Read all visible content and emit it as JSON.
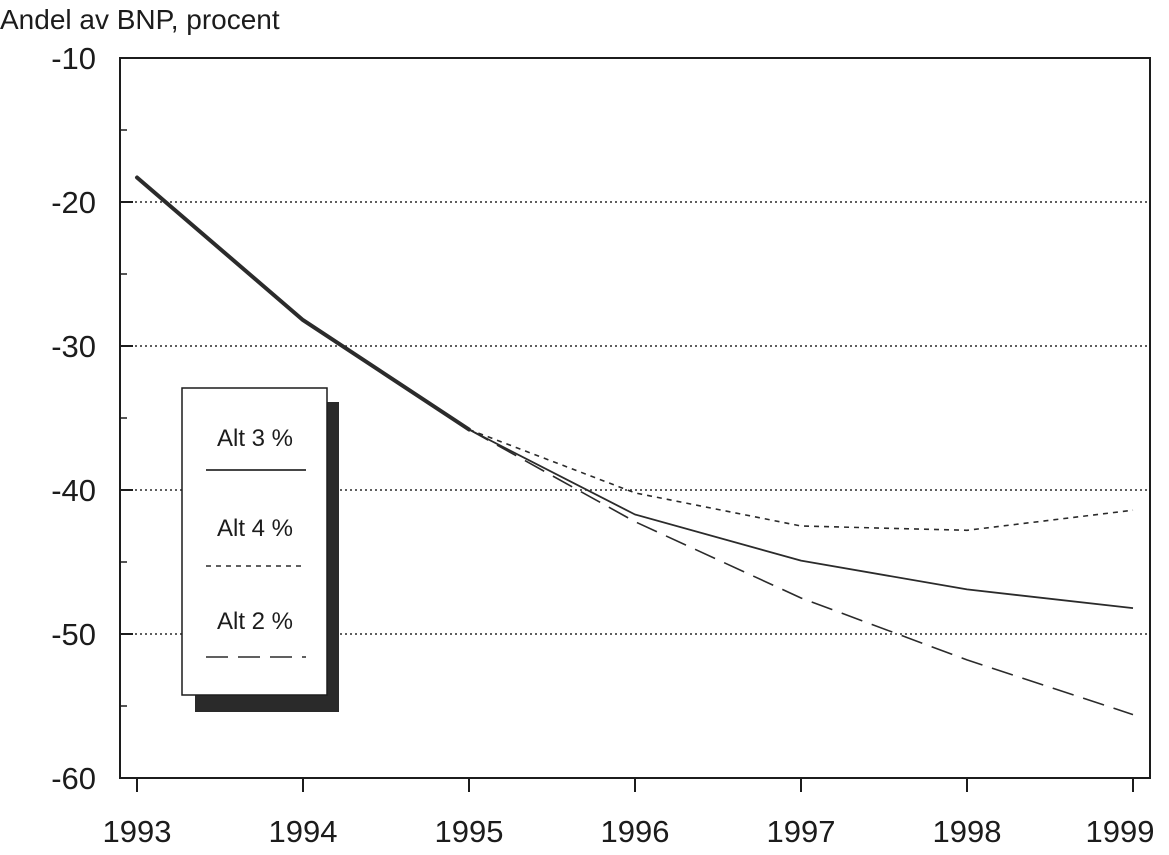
{
  "chart_data": {
    "type": "line",
    "title": "",
    "xlabel": "",
    "ylabel": "Andel av BNP, procent",
    "x": [
      1993,
      1994,
      1995,
      1996,
      1997,
      1998,
      1999
    ],
    "x_tick_labels": [
      "1993",
      "1994",
      "1995",
      "1996",
      "1997",
      "1998",
      "1999"
    ],
    "ylim": [
      -60,
      -10
    ],
    "y_ticks": [
      -10,
      -20,
      -30,
      -40,
      -50,
      -60
    ],
    "y_tick_labels": [
      "-10",
      "-20",
      "-30",
      "-40",
      "-50",
      "-60"
    ],
    "grid": {
      "horizontal_dotted": true,
      "values": [
        -20,
        -30,
        -40,
        -50
      ]
    },
    "legend_position": "left",
    "history": {
      "x": [
        1993,
        1994,
        1995
      ],
      "values": [
        -18.3,
        -28.2,
        -35.8
      ]
    },
    "series": [
      {
        "name": "Alt 3 %",
        "style": "solid",
        "x": [
          1995,
          1996,
          1997,
          1998,
          1999
        ],
        "values": [
          -35.8,
          -41.7,
          -44.9,
          -46.9,
          -48.2
        ]
      },
      {
        "name": "Alt 4 %",
        "style": "dotted",
        "x": [
          1995,
          1996,
          1997,
          1998,
          1999
        ],
        "values": [
          -35.8,
          -40.2,
          -42.5,
          -42.8,
          -41.4
        ]
      },
      {
        "name": "Alt 2 %",
        "style": "dashed",
        "x": [
          1995,
          1996,
          1997,
          1998,
          1999
        ],
        "values": [
          -35.8,
          -42.2,
          -47.5,
          -51.8,
          -55.6
        ]
      }
    ],
    "colors": {
      "line": "#2b2b2b",
      "axis": "#1c1c1c",
      "legend_shadow": "#2a2a2a"
    }
  }
}
